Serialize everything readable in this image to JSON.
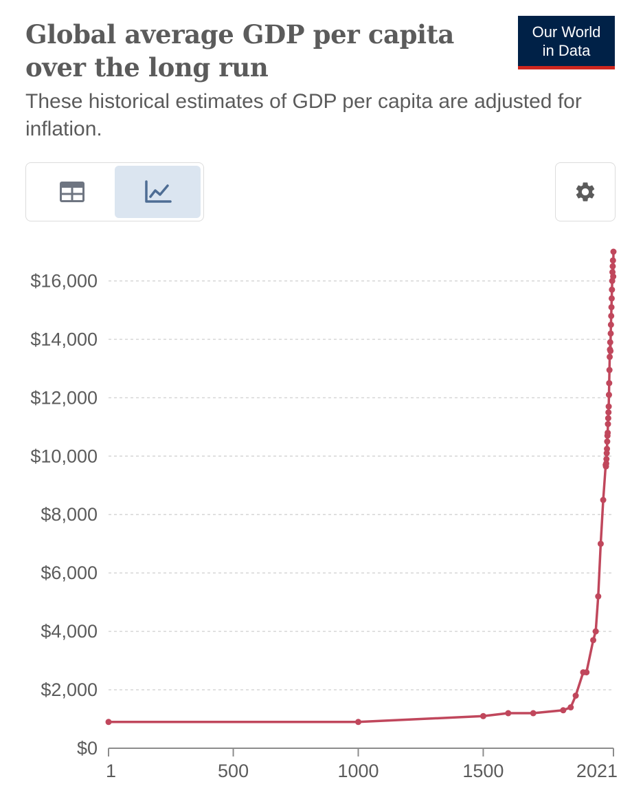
{
  "header": {
    "title": "Global average GDP per capita over the long run",
    "subtitle": "These historical estimates of GDP per capita are adjusted for inflation."
  },
  "logo": {
    "line1": "Our World",
    "line2": "in Data"
  },
  "toolbar": {
    "table_icon": "table-icon",
    "chart_icon": "line-chart-icon",
    "settings_icon": "gear-icon",
    "active_view": "chart"
  },
  "colors": {
    "line": "#c0475c",
    "accent": "#002147",
    "logo_bar": "#ce261e"
  },
  "chart_data": {
    "type": "line",
    "title": "Global average GDP per capita over the long run",
    "xlabel": "",
    "ylabel": "",
    "xlim": [
      1,
      2021
    ],
    "ylim": [
      0,
      17000
    ],
    "x_ticks": [
      {
        "value": 1,
        "label": "1"
      },
      {
        "value": 500,
        "label": "500"
      },
      {
        "value": 1000,
        "label": "1000"
      },
      {
        "value": 1500,
        "label": "1500"
      },
      {
        "value": 2021,
        "label": "2021"
      }
    ],
    "y_ticks": [
      {
        "value": 0,
        "label": "$0"
      },
      {
        "value": 2000,
        "label": "$2,000"
      },
      {
        "value": 4000,
        "label": "$4,000"
      },
      {
        "value": 6000,
        "label": "$6,000"
      },
      {
        "value": 8000,
        "label": "$8,000"
      },
      {
        "value": 10000,
        "label": "$10,000"
      },
      {
        "value": 12000,
        "label": "$12,000"
      },
      {
        "value": 14000,
        "label": "$14,000"
      },
      {
        "value": 16000,
        "label": "$16,000"
      }
    ],
    "grid": "horizontal dashed",
    "series": [
      {
        "color": "#c0475c",
        "x": [
          1,
          1000,
          1500,
          1600,
          1700,
          1820,
          1850,
          1870,
          1900,
          1913,
          1940,
          1950,
          1960,
          1970,
          1980,
          1990,
          1991,
          1992,
          1993,
          1994,
          1995,
          1996,
          1997,
          1998,
          1999,
          2000,
          2001,
          2002,
          2003,
          2004,
          2005,
          2006,
          2007,
          2008,
          2009,
          2010,
          2011,
          2012,
          2013,
          2014,
          2015,
          2016,
          2017,
          2018,
          2019,
          2020,
          2021
        ],
        "y": [
          900,
          900,
          1100,
          1200,
          1200,
          1300,
          1400,
          1800,
          2600,
          2600,
          3700,
          4000,
          5200,
          7000,
          8500,
          9700,
          9650,
          9750,
          9900,
          10100,
          10250,
          10500,
          10700,
          10800,
          11100,
          11300,
          11500,
          11700,
          12100,
          12500,
          12950,
          13400,
          13650,
          13900,
          13600,
          14200,
          14500,
          14800,
          15100,
          15400,
          15700,
          16000,
          16300,
          16500,
          16700,
          16150,
          17000
        ]
      }
    ]
  }
}
